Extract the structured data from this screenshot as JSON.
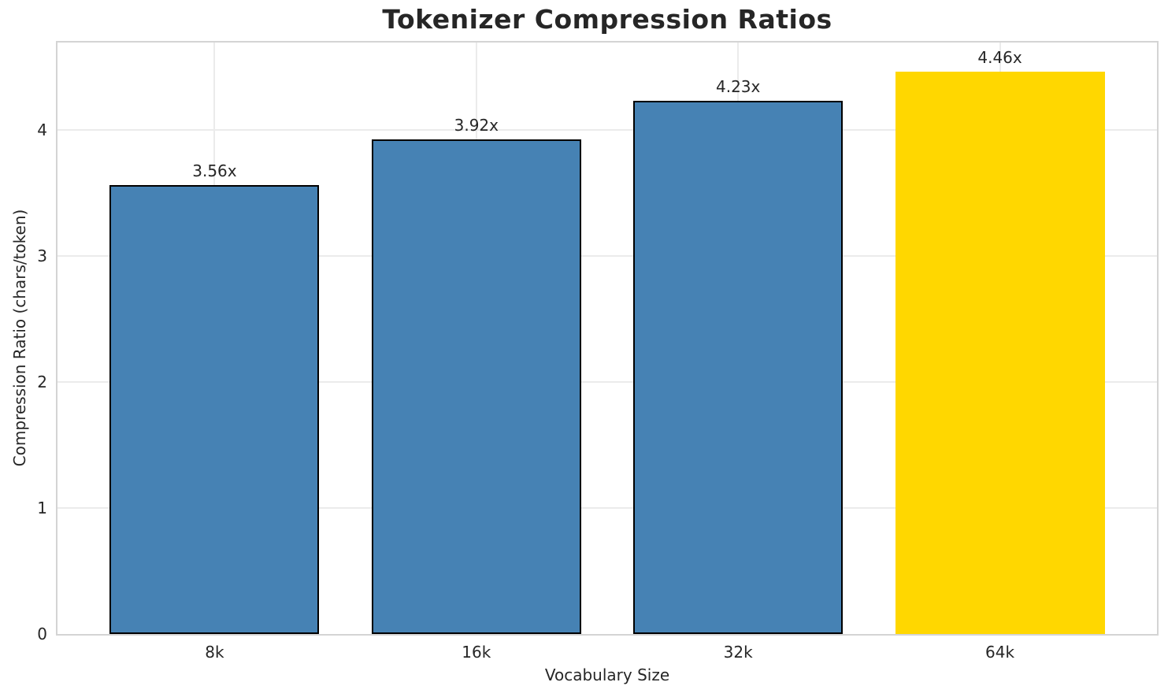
{
  "chart_data": {
    "type": "bar",
    "title": "Tokenizer Compression Ratios",
    "xlabel": "Vocabulary Size",
    "ylabel": "Compression Ratio (chars/token)",
    "categories": [
      "8k",
      "16k",
      "32k",
      "64k"
    ],
    "values": [
      3.56,
      3.92,
      4.23,
      4.46
    ],
    "bar_labels": [
      "3.56x",
      "3.92x",
      "4.23x",
      "4.46x"
    ],
    "bar_colors": [
      "#4682B4",
      "#4682B4",
      "#4682B4",
      "#FFD700"
    ],
    "bar_edge_colors": [
      "#000000",
      "#000000",
      "#000000",
      "none"
    ],
    "bar_edge_widths": [
      2,
      2,
      2,
      0
    ],
    "ylim": [
      0,
      4.69
    ],
    "yticks": [
      0,
      1,
      2,
      3,
      4
    ],
    "grid": true,
    "grid_axes": "both",
    "legend": "none",
    "highlight_category": "64k"
  },
  "colors": {
    "text": "#262626",
    "grid": "#ebebeb",
    "spine": "#d4d4d4",
    "background": "#ffffff"
  }
}
